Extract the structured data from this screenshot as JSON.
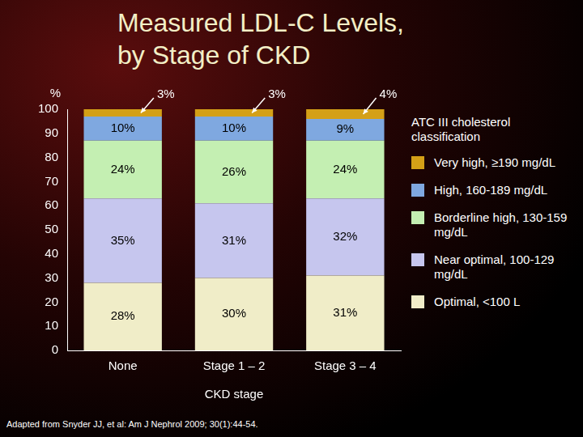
{
  "chart_data": {
    "type": "bar",
    "title": "Measured LDL-C Levels, by Stage of CKD",
    "xlabel": "CKD stage",
    "ylabel": "%",
    "source": "Adapted from Snyder JJ, et al: Am J Nephrol 2009; 30(1):44-54.",
    "legend_title": "ATC III cholesterol classification",
    "categories": [
      "None",
      "Stage 1 – 2",
      "Stage 3 – 4"
    ],
    "series": [
      {
        "name": "Optimal, <100 L",
        "color": "#f0edc8",
        "values": [
          28,
          30,
          31
        ],
        "value_labels": [
          "28%",
          "30%",
          "31%"
        ]
      },
      {
        "name": "Near optimal, 100-129 mg/dL",
        "color": "#c6c6ee",
        "values": [
          35,
          31,
          32
        ],
        "value_labels": [
          "35%",
          "31%",
          "32%"
        ]
      },
      {
        "name": "Borderline high, 130-159 mg/dL",
        "color": "#c4efb2",
        "values": [
          24,
          26,
          24
        ],
        "value_labels": [
          "24%",
          "26%",
          "24%"
        ]
      },
      {
        "name": "High, 160-189 mg/dL",
        "color": "#7fa8e0",
        "values": [
          10,
          10,
          9
        ],
        "value_labels": [
          "10%",
          "10%",
          "9%"
        ]
      },
      {
        "name": "Very high, ≥190 mg/dL",
        "color": "#d4a017",
        "values": [
          3,
          3,
          4
        ],
        "value_labels": [
          "3%",
          "3%",
          "4%"
        ]
      }
    ],
    "stacked": true,
    "data_labels": true,
    "ylim": [
      0,
      100
    ],
    "yticks": [
      0,
      10,
      20,
      30,
      40,
      50,
      60,
      70,
      80,
      90,
      100
    ],
    "grid": false,
    "legend": "right"
  }
}
